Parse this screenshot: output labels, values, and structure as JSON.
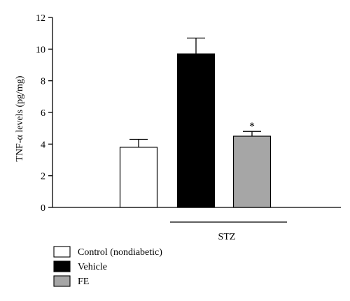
{
  "chart_data": {
    "type": "bar",
    "title": "",
    "ylabel": "TNF-α levels (pg/mg)",
    "xlabel": "",
    "ylim": [
      0,
      12
    ],
    "yticks": [
      0,
      2,
      4,
      6,
      8,
      10,
      12
    ],
    "grid": false,
    "legend_position": "bottom-left",
    "bars": [
      {
        "name": "Control (nondiabetic)",
        "value": 3.8,
        "error": 0.5,
        "color": "#ffffff",
        "annotation": ""
      },
      {
        "name": "Vehicle",
        "value": 9.7,
        "error": 1.0,
        "color": "#000000",
        "annotation": ""
      },
      {
        "name": "FE",
        "value": 4.5,
        "error": 0.3,
        "color": "#a6a6a6",
        "annotation": "*"
      }
    ],
    "group_label": "STZ"
  }
}
